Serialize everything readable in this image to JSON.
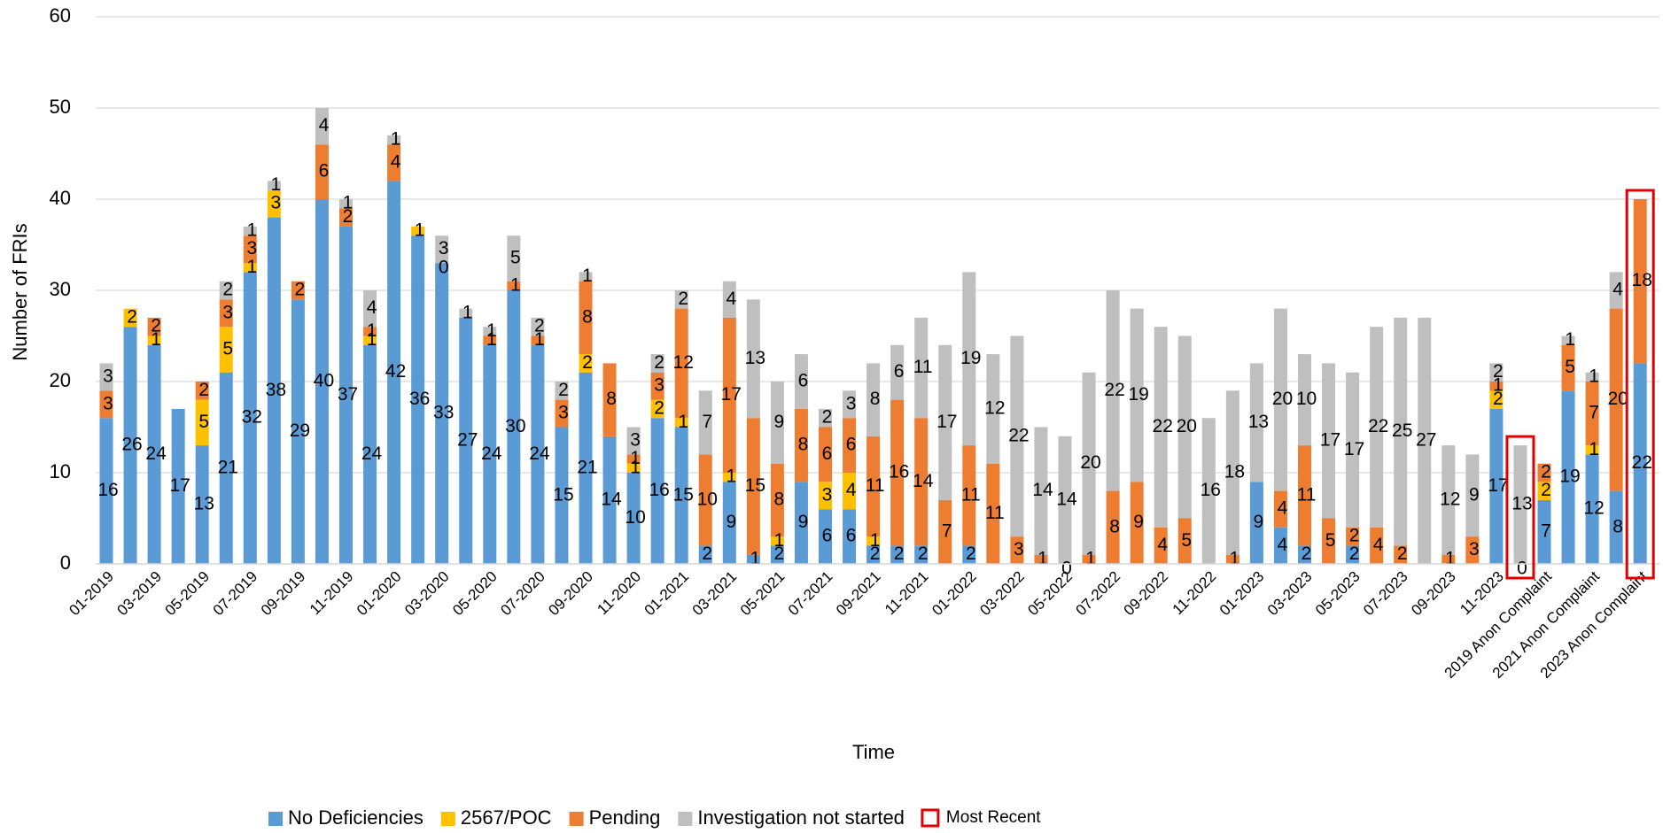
{
  "chart_data": {
    "type": "stacked_bar",
    "y_axis_label": "Number of FRIs",
    "x_axis_label": "Time",
    "categories": [
      "01-2019",
      null,
      "03-2019",
      null,
      "05-2019",
      null,
      "07-2019",
      null,
      "09-2019",
      null,
      "11-2019",
      null,
      "01-2020",
      null,
      "03-2020",
      null,
      "05-2020",
      null,
      "07-2020",
      null,
      "09-2020",
      null,
      "11-2020",
      null,
      "01-2021",
      null,
      "03-2021",
      null,
      "05-2021",
      null,
      "07-2021",
      null,
      "09-2021",
      null,
      "11-2021",
      null,
      "01-2022",
      null,
      "03-2022",
      null,
      "05-2022",
      null,
      "07-2022",
      null,
      "09-2022",
      null,
      "11-2022",
      null,
      "01-2023",
      null,
      "03-2023",
      null,
      "05-2023",
      null,
      "07-2023",
      null,
      "09-2023",
      null,
      "11-2023",
      null,
      "2019 Anon Complaint",
      null,
      "2021 Anon Complaint",
      null,
      "2023 Anon Complaint"
    ],
    "series": [
      {
        "name": "No Deficiencies",
        "color": "#5b9bd5",
        "values": [
          16,
          26,
          24,
          17,
          13,
          21,
          32,
          38,
          29,
          40,
          37,
          24,
          42,
          36,
          33,
          27,
          24,
          30,
          24,
          15,
          21,
          14,
          10,
          16,
          15,
          2,
          9,
          1,
          2,
          9,
          6,
          6,
          2,
          2,
          2,
          null,
          2,
          null,
          null,
          null,
          0,
          null,
          null,
          null,
          null,
          null,
          null,
          null,
          9,
          4,
          2,
          null,
          2,
          null,
          null,
          null,
          null,
          null,
          17,
          0,
          7,
          19,
          12,
          8,
          22
        ]
      },
      {
        "name": "2567/POC",
        "color": "#ffc000",
        "values": [
          null,
          2,
          1,
          null,
          5,
          5,
          1,
          3,
          null,
          null,
          null,
          1,
          null,
          1,
          null,
          null,
          null,
          null,
          null,
          null,
          2,
          null,
          1,
          2,
          1,
          null,
          1,
          null,
          1,
          null,
          3,
          4,
          1,
          null,
          null,
          null,
          null,
          null,
          null,
          null,
          null,
          null,
          null,
          null,
          null,
          null,
          null,
          null,
          null,
          null,
          null,
          null,
          null,
          null,
          null,
          null,
          null,
          null,
          2,
          null,
          2,
          null,
          1,
          null,
          null
        ]
      },
      {
        "name": "Pending",
        "color": "#ed7d31",
        "values": [
          3,
          null,
          2,
          null,
          2,
          3,
          3,
          null,
          2,
          6,
          2,
          1,
          4,
          null,
          0,
          null,
          1,
          1,
          1,
          3,
          8,
          8,
          1,
          3,
          12,
          10,
          17,
          15,
          8,
          8,
          6,
          6,
          11,
          16,
          14,
          7,
          11,
          11,
          3,
          1,
          null,
          1,
          8,
          9,
          4,
          5,
          null,
          1,
          null,
          4,
          11,
          5,
          2,
          4,
          2,
          null,
          1,
          3,
          1,
          null,
          2,
          5,
          7,
          20,
          18
        ]
      },
      {
        "name": "Investigation not started",
        "color": "#bfbfbf",
        "values": [
          3,
          null,
          null,
          null,
          null,
          2,
          1,
          1,
          null,
          4,
          1,
          4,
          1,
          null,
          3,
          1,
          1,
          5,
          2,
          2,
          1,
          null,
          3,
          2,
          2,
          7,
          4,
          13,
          9,
          6,
          2,
          3,
          8,
          6,
          11,
          17,
          19,
          12,
          22,
          14,
          14,
          20,
          22,
          19,
          22,
          20,
          16,
          18,
          13,
          20,
          10,
          17,
          17,
          22,
          25,
          27,
          12,
          9,
          2,
          13,
          null,
          1,
          1,
          4,
          null
        ]
      }
    ],
    "ylim": [
      0,
      60
    ],
    "yticks": [
      0,
      10,
      20,
      30,
      40,
      50,
      60
    ],
    "grid": true,
    "highlight": {
      "name": "Most Recent",
      "color": "#e00000",
      "indices": [
        59,
        64
      ]
    }
  }
}
